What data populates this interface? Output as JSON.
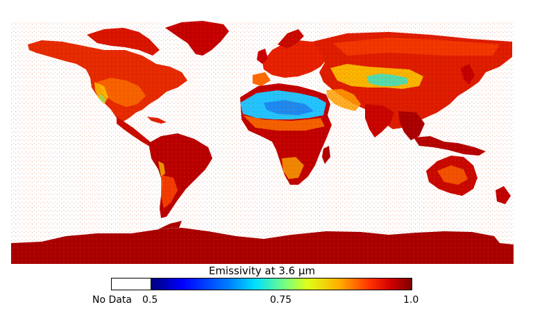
{
  "colorbar": {
    "title": "Emissivity at 3.6 µm",
    "nodata_label": "No Data",
    "min_label": "0.5",
    "mid_label": "0.75",
    "max_label": "1.0",
    "range": [
      0.5,
      1.0
    ],
    "colormap": "jet"
  },
  "colors": {
    "ocean": "#ffffff",
    "high_emissivity": "#b50000",
    "mid_high": "#ff3d00",
    "mid": "#ffc400",
    "low": "#2fd1ff",
    "lowest": "#0a4fd9"
  },
  "map_legend": {
    "projection": "equirectangular",
    "extent": "global"
  }
}
